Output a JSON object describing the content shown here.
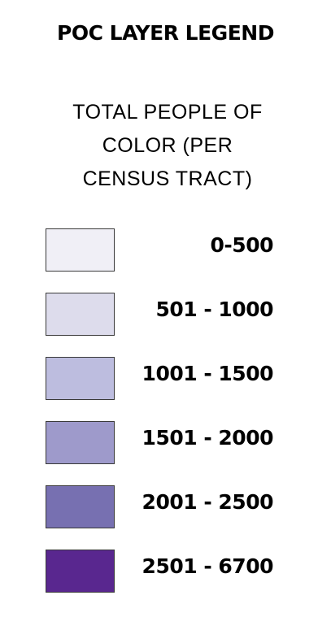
{
  "legend": {
    "title": "POC LAYER LEGEND",
    "subtitle_lines": [
      "TOTAL PEOPLE OF",
      "COLOR (PER",
      "CENSUS TRACT)"
    ],
    "items": [
      {
        "label": "0-500",
        "color": "#f0eff6"
      },
      {
        "label": "501 - 1000",
        "color": "#dddcec"
      },
      {
        "label": "1001 - 1500",
        "color": "#bdbddf"
      },
      {
        "label": "1501 - 2000",
        "color": "#9e9acb"
      },
      {
        "label": "2001 - 2500",
        "color": "#7770b1"
      },
      {
        "label": "2501 - 6700",
        "color": "#59278f"
      }
    ]
  }
}
